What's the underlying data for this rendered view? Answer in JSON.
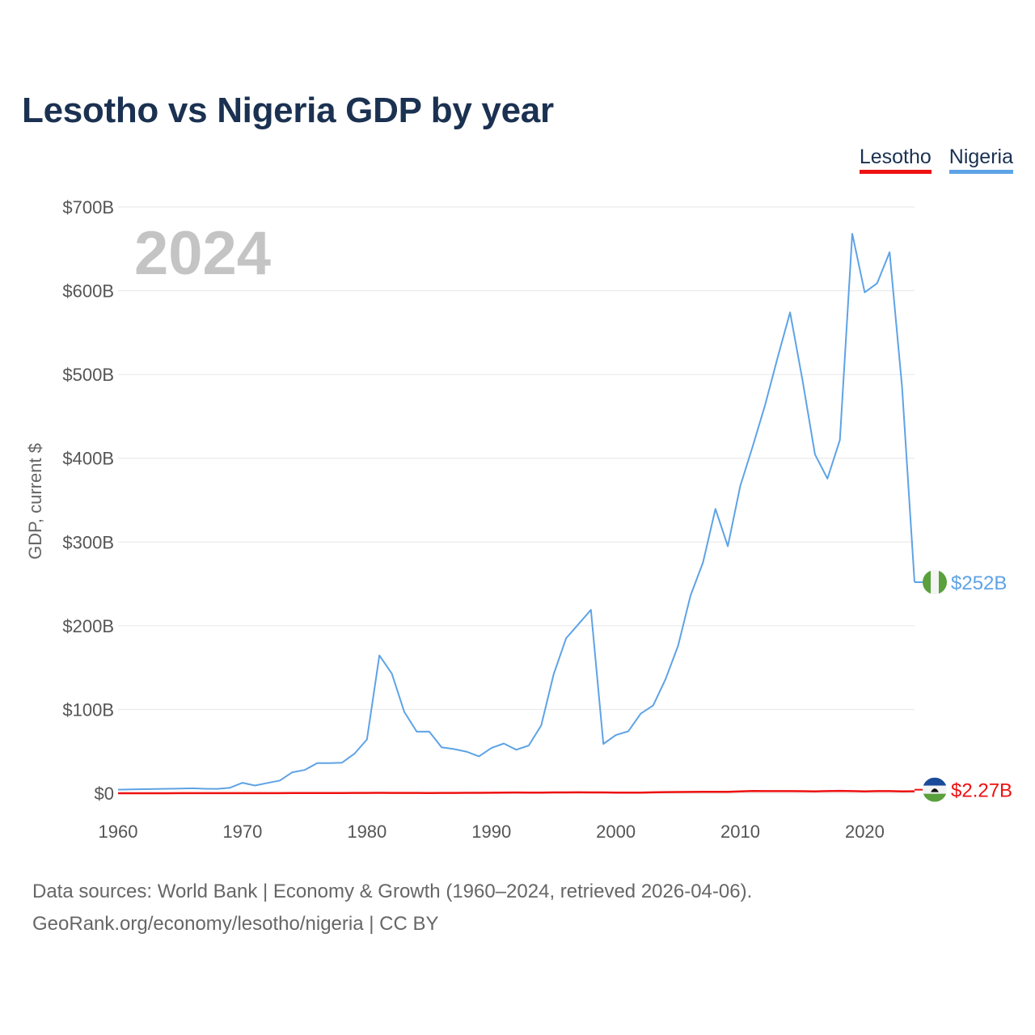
{
  "title": "Lesotho vs Nigeria GDP by year",
  "year_label": "2024",
  "legend": [
    {
      "name": "Lesotho",
      "color": "#ee1111"
    },
    {
      "name": "Nigeria",
      "color": "#5ea3e6"
    }
  ],
  "footer": {
    "sources": "Data sources: World Bank | Economy & Growth (1960–2024, retrieved 2026-04-06).",
    "credit": "GeoRank.org/economy/lesotho/nigeria | CC BY"
  },
  "chart_data": {
    "type": "line",
    "title": "Lesotho vs Nigeria GDP by year",
    "xlabel": "",
    "ylabel": "GDP, current $",
    "xlim": [
      1960,
      2024
    ],
    "ylim": [
      0,
      700
    ],
    "unit": "billion USD",
    "x_ticks": [
      1960,
      1970,
      1980,
      1990,
      2000,
      2010,
      2020
    ],
    "y_ticks": [
      {
        "value": 0,
        "label": "$0"
      },
      {
        "value": 100,
        "label": "$100B"
      },
      {
        "value": 200,
        "label": "$200B"
      },
      {
        "value": 300,
        "label": "$300B"
      },
      {
        "value": 400,
        "label": "$400B"
      },
      {
        "value": 500,
        "label": "$500B"
      },
      {
        "value": 600,
        "label": "$600B"
      },
      {
        "value": 700,
        "label": "$700B"
      }
    ],
    "grid": true,
    "legend_position": "top-right",
    "x": [
      1960,
      1961,
      1962,
      1963,
      1964,
      1965,
      1966,
      1967,
      1968,
      1969,
      1970,
      1971,
      1972,
      1973,
      1974,
      1975,
      1976,
      1977,
      1978,
      1979,
      1980,
      1981,
      1982,
      1983,
      1984,
      1985,
      1986,
      1987,
      1988,
      1989,
      1990,
      1991,
      1992,
      1993,
      1994,
      1995,
      1996,
      1997,
      1998,
      1999,
      2000,
      2001,
      2002,
      2003,
      2004,
      2005,
      2006,
      2007,
      2008,
      2009,
      2010,
      2011,
      2012,
      2013,
      2014,
      2015,
      2016,
      2017,
      2018,
      2019,
      2020,
      2021,
      2022,
      2023,
      2024
    ],
    "series": [
      {
        "name": "Nigeria",
        "color": "#5ea3e6",
        "end_label": "$252B",
        "values": [
          4.2,
          4.5,
          4.8,
          5.0,
          5.3,
          5.6,
          5.9,
          5.3,
          5.2,
          6.6,
          12.5,
          9.2,
          12.3,
          15.2,
          25.0,
          27.8,
          36.0,
          36.0,
          36.5,
          47.2,
          64.2,
          164.5,
          142.8,
          97.1,
          73.5,
          73.7,
          54.8,
          52.7,
          49.6,
          44.0,
          54.0,
          59.4,
          51.9,
          57.0,
          80.9,
          142.0,
          185.0,
          202.0,
          219.0,
          58.9,
          69.4,
          74.0,
          95.0,
          104.9,
          136.4,
          176.1,
          236.1,
          275.6,
          339.5,
          295.0,
          366.9,
          414.2,
          463.9,
          520.1,
          574.2,
          493.0,
          404.6,
          375.7,
          421.7,
          668.0,
          598.0,
          609.0,
          646.0,
          485.0,
          252.0
        ]
      },
      {
        "name": "Lesotho",
        "color": "#ee1111",
        "end_label": "$2.27B",
        "values": [
          0.03,
          0.03,
          0.03,
          0.03,
          0.04,
          0.05,
          0.05,
          0.05,
          0.06,
          0.07,
          0.07,
          0.08,
          0.09,
          0.12,
          0.16,
          0.18,
          0.21,
          0.26,
          0.32,
          0.41,
          0.43,
          0.47,
          0.42,
          0.38,
          0.35,
          0.28,
          0.34,
          0.39,
          0.45,
          0.51,
          0.62,
          0.7,
          0.83,
          0.81,
          0.81,
          0.94,
          0.97,
          1.04,
          0.93,
          0.93,
          0.82,
          0.76,
          0.68,
          1.03,
          1.34,
          1.47,
          1.56,
          1.61,
          1.62,
          1.72,
          2.19,
          2.63,
          2.55,
          2.51,
          2.55,
          2.45,
          2.23,
          2.5,
          2.77,
          2.49,
          2.24,
          2.52,
          2.5,
          2.13,
          2.27
        ]
      }
    ]
  }
}
